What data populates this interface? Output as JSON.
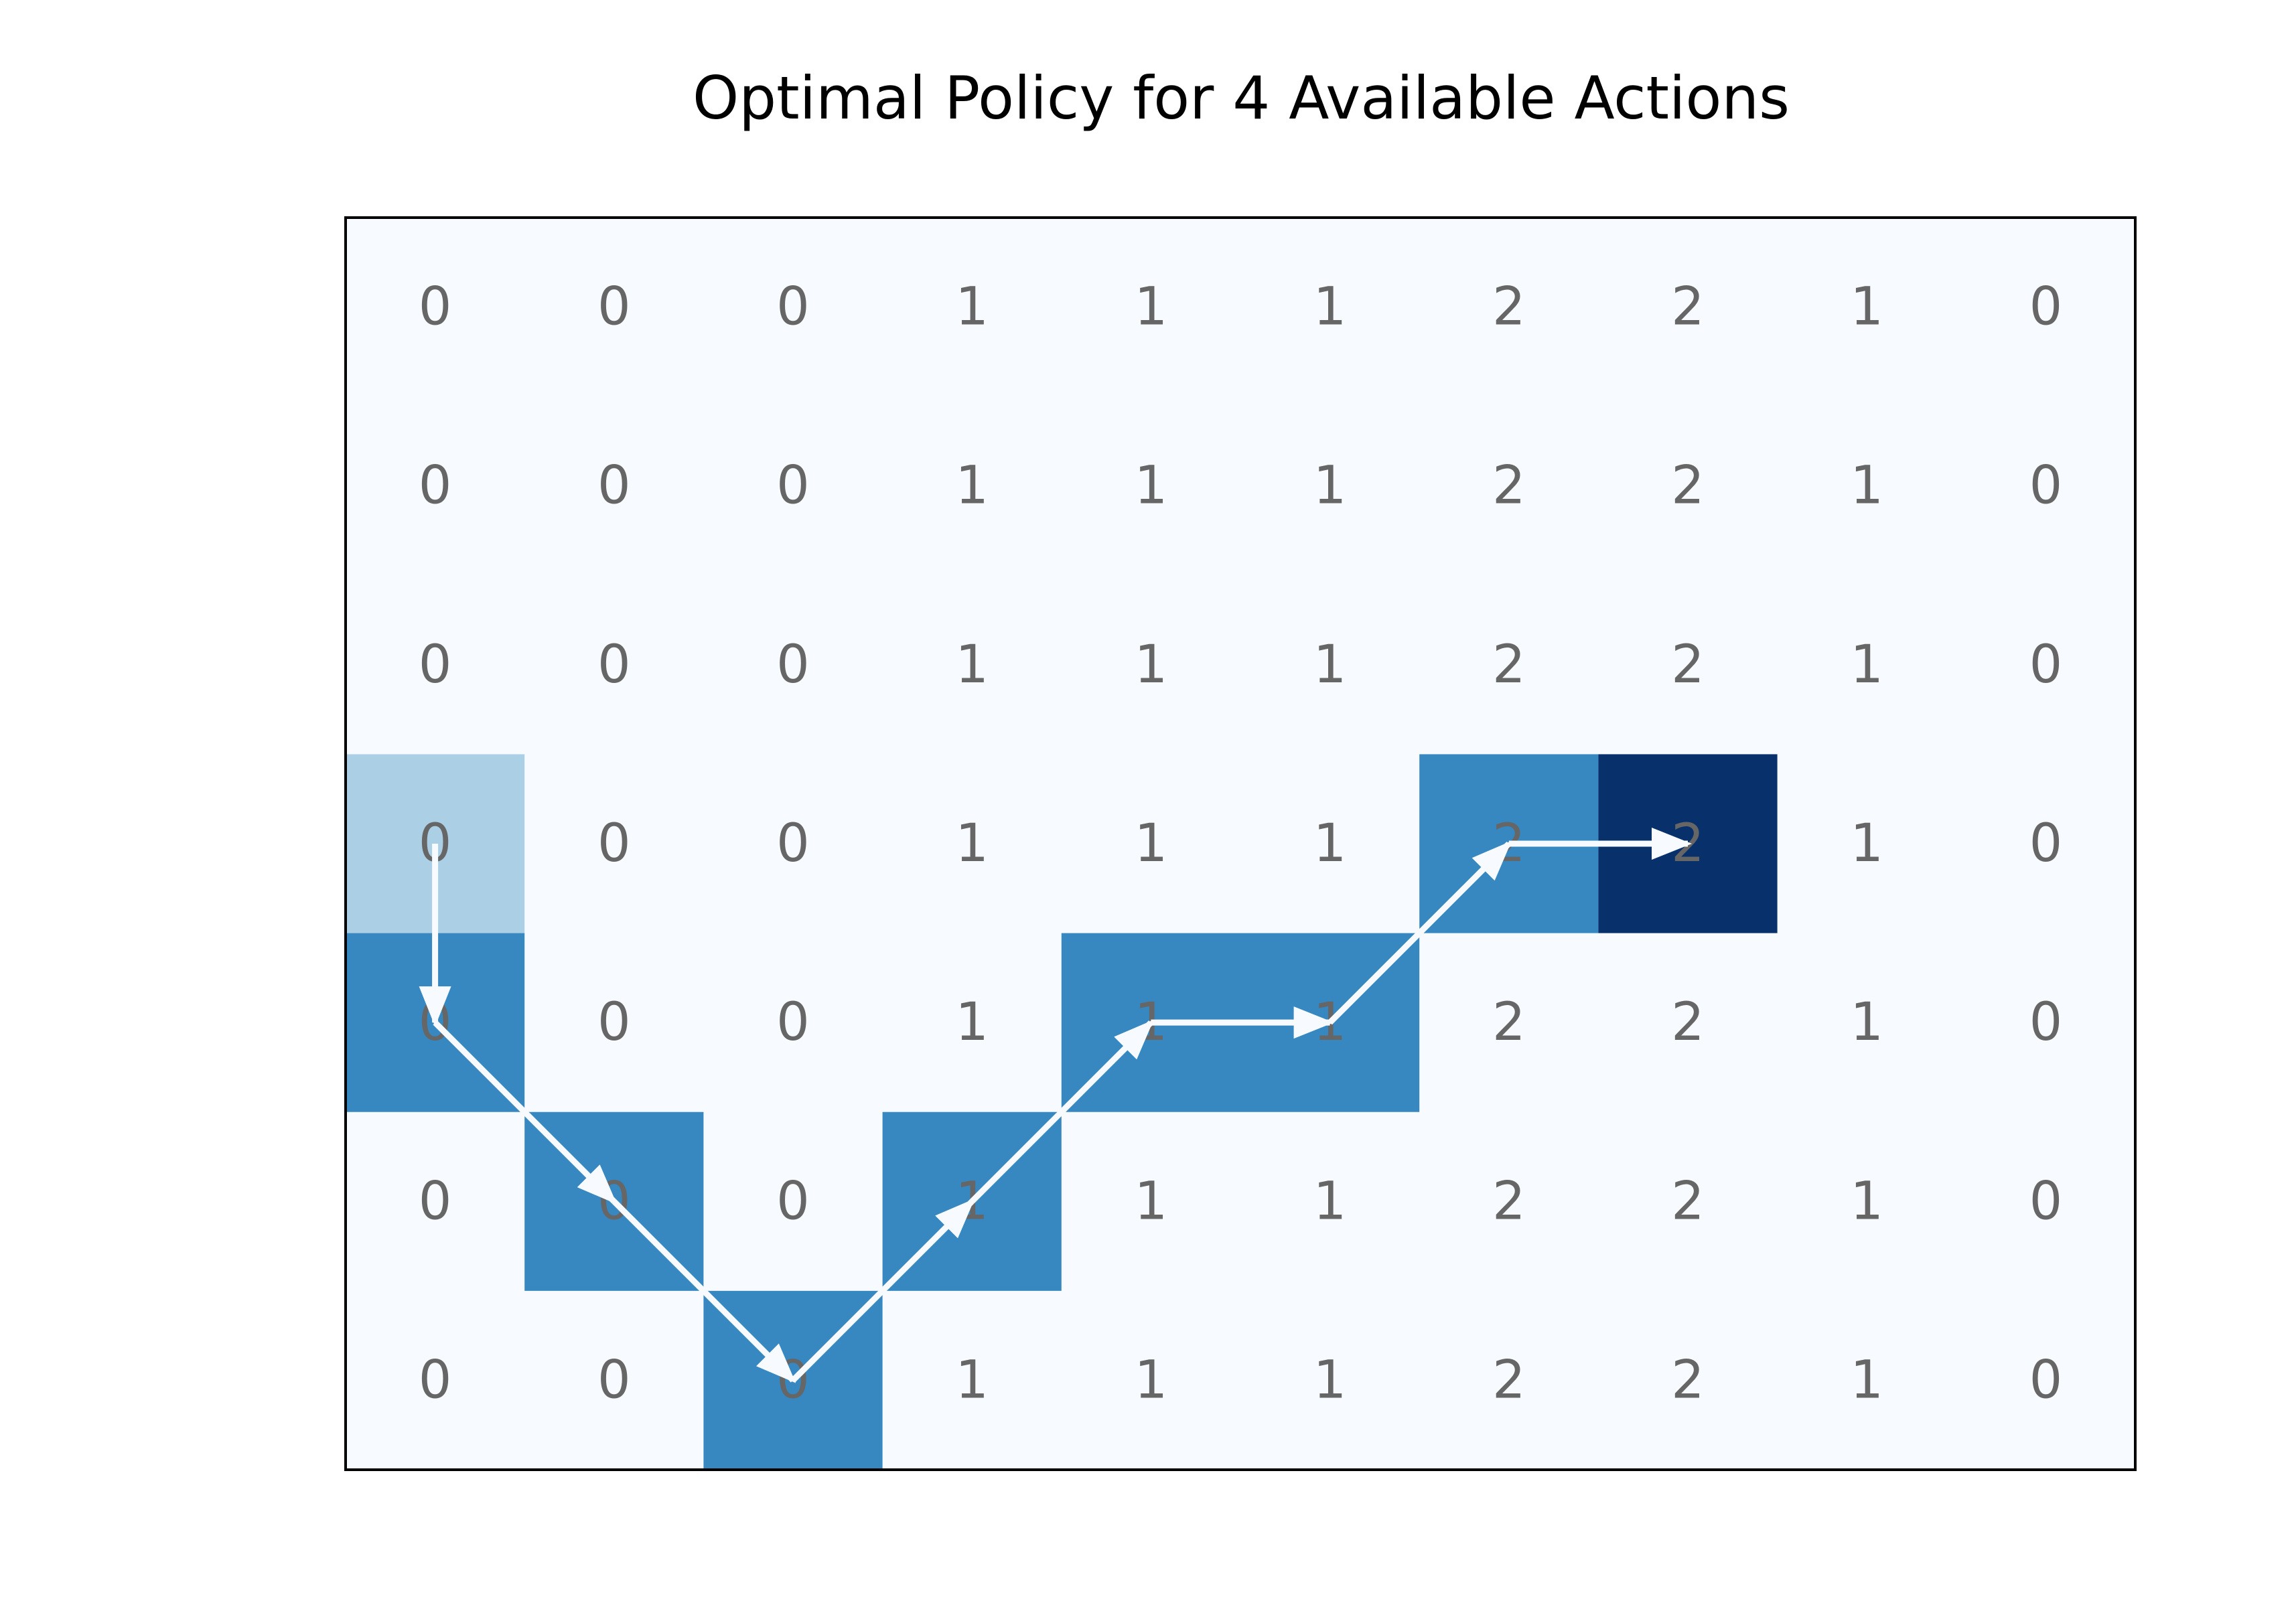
{
  "chart_data": {
    "type": "heatmap",
    "title": "Optimal Policy for 4 Available Actions",
    "xlabel": "",
    "ylabel": "",
    "rows": 7,
    "cols": 10,
    "cell_values": [
      [
        0,
        0,
        0,
        1,
        1,
        1,
        2,
        2,
        1,
        0
      ],
      [
        0,
        0,
        0,
        1,
        1,
        1,
        2,
        2,
        1,
        0
      ],
      [
        0,
        0,
        0,
        1,
        1,
        1,
        2,
        2,
        1,
        0
      ],
      [
        0,
        0,
        0,
        1,
        1,
        1,
        2,
        2,
        1,
        0
      ],
      [
        0,
        0,
        0,
        1,
        1,
        1,
        2,
        2,
        1,
        0
      ],
      [
        0,
        0,
        0,
        1,
        1,
        1,
        2,
        2,
        1,
        0
      ],
      [
        0,
        0,
        0,
        1,
        1,
        1,
        2,
        2,
        1,
        0
      ]
    ],
    "path": [
      [
        3,
        0
      ],
      [
        4,
        0
      ],
      [
        5,
        1
      ],
      [
        6,
        2
      ],
      [
        5,
        3
      ],
      [
        4,
        4
      ],
      [
        4,
        5
      ],
      [
        3,
        6
      ],
      [
        3,
        7
      ]
    ],
    "start": [
      3,
      0
    ],
    "goal": [
      3,
      7
    ],
    "colors": {
      "background": "#f7fbff",
      "start_cell": "#abd0e6",
      "path_cell": "#3787c0",
      "goal_cell": "#08306b",
      "arrow": "#f7fbff",
      "label": "#666666",
      "frame": "#000000"
    },
    "grid": false,
    "legend": "none"
  }
}
